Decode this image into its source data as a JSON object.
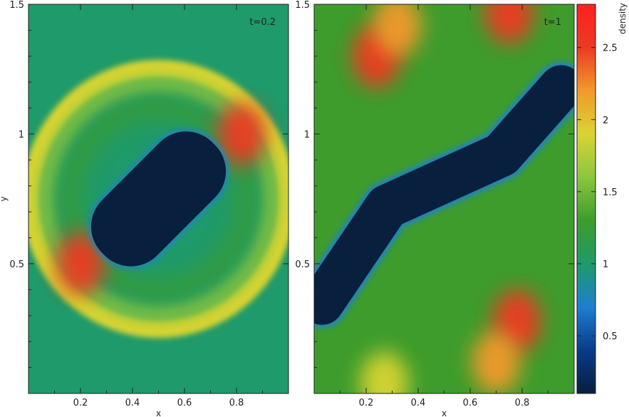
{
  "chart_data": {
    "type": "heatmap",
    "colorbar": {
      "label": "density",
      "range": [
        0.1,
        2.8
      ],
      "ticks": [
        "0.5",
        "1",
        "1.5",
        "2",
        "2.5"
      ],
      "tick_values": [
        0.5,
        1.0,
        1.5,
        2.0,
        2.5
      ],
      "colors": [
        "#081f3d",
        "#0a3a8a",
        "#1d7fd0",
        "#1f9a6a",
        "#3e9c2c",
        "#8cc63f",
        "#d8d433",
        "#f29a2a",
        "#ec3a24",
        "#ff2020"
      ]
    },
    "panels": [
      {
        "label": "t=0.2",
        "xlabel": "x",
        "ylabel": "y",
        "xlim": [
          0,
          1
        ],
        "ylim": [
          0,
          1.5
        ],
        "xticks": [
          "0.2",
          "0.4",
          "0.6",
          "0.8"
        ],
        "yticks": [
          "0.5",
          "1",
          "1.5"
        ],
        "background_density": 1.0,
        "shock_ring": {
          "center": [
            0.5,
            0.75
          ],
          "radius_x": 0.49,
          "radius_y": 0.5,
          "density": 1.9
        },
        "bubble": {
          "center": [
            0.5,
            0.75
          ],
          "major": 0.3,
          "minor": 0.15,
          "angle_deg": 45,
          "density": 0.1
        },
        "hot_spots": [
          {
            "center": [
              0.2,
              0.5
            ],
            "density": 2.6
          },
          {
            "center": [
              0.82,
              1.0
            ],
            "density": 2.6
          }
        ]
      },
      {
        "label": "t=1",
        "xlabel": "x",
        "ylabel": "",
        "xlim": [
          0,
          1
        ],
        "ylim": [
          0,
          1.5
        ],
        "xticks": [
          "0.2",
          "0.4",
          "0.6",
          "0.8"
        ],
        "yticks": [
          "0.5",
          "1",
          "1.5"
        ],
        "background_density": 1.2,
        "bubble_path": [
          [
            0.03,
            0.35
          ],
          [
            0.28,
            0.72
          ],
          [
            0.72,
            0.92
          ],
          [
            0.95,
            1.18
          ]
        ],
        "bubble_width": 0.085,
        "bubble_density": 0.1,
        "hot_spots": [
          {
            "center": [
              0.24,
              1.3
            ],
            "density": 2.5
          },
          {
            "center": [
              0.32,
              1.42
            ],
            "density": 2.2
          },
          {
            "center": [
              0.78,
              0.28
            ],
            "density": 2.5
          },
          {
            "center": [
              0.7,
              0.12
            ],
            "density": 2.3
          },
          {
            "center": [
              0.75,
              1.47
            ],
            "density": 2.4
          },
          {
            "center": [
              0.27,
              0.04
            ],
            "density": 1.8
          }
        ]
      }
    ]
  }
}
